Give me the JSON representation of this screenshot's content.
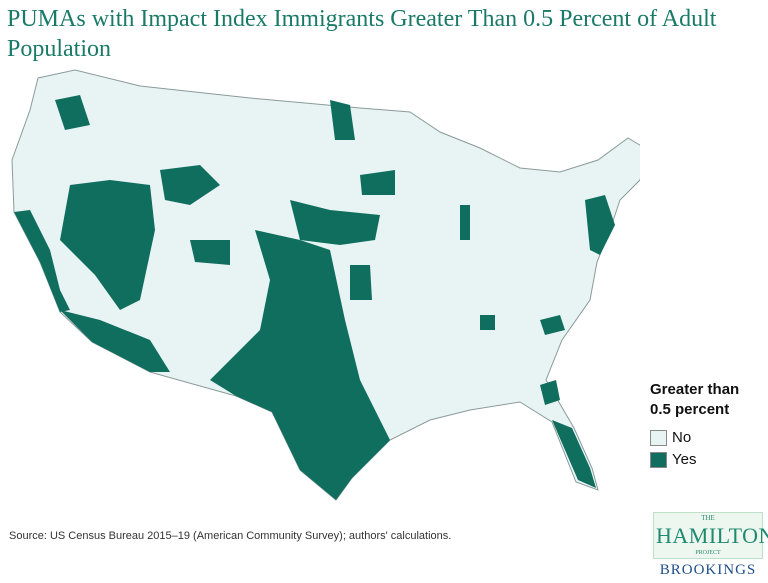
{
  "title": "PUMAs with Impact Index Immigrants Greater Than 0.5 Percent of Adult Population",
  "legend": {
    "title_line1": "Greater than",
    "title_line2": "0.5 percent",
    "items": [
      {
        "label": "No",
        "color": "#e8f4f4"
      },
      {
        "label": "Yes",
        "color": "#0f6e5e"
      }
    ]
  },
  "source": "Source: US Census Bureau 2015–19 (American Community Survey); authors' calculations.",
  "logo": {
    "the": "THE",
    "hamilton": "HAMILTON",
    "project": "PROJECT",
    "brookings": "BROOKINGS"
  },
  "colors": {
    "no": "#e8f4f4",
    "yes": "#0f6e5e",
    "border": "#8a9a9a",
    "title": "#1a7a68"
  }
}
